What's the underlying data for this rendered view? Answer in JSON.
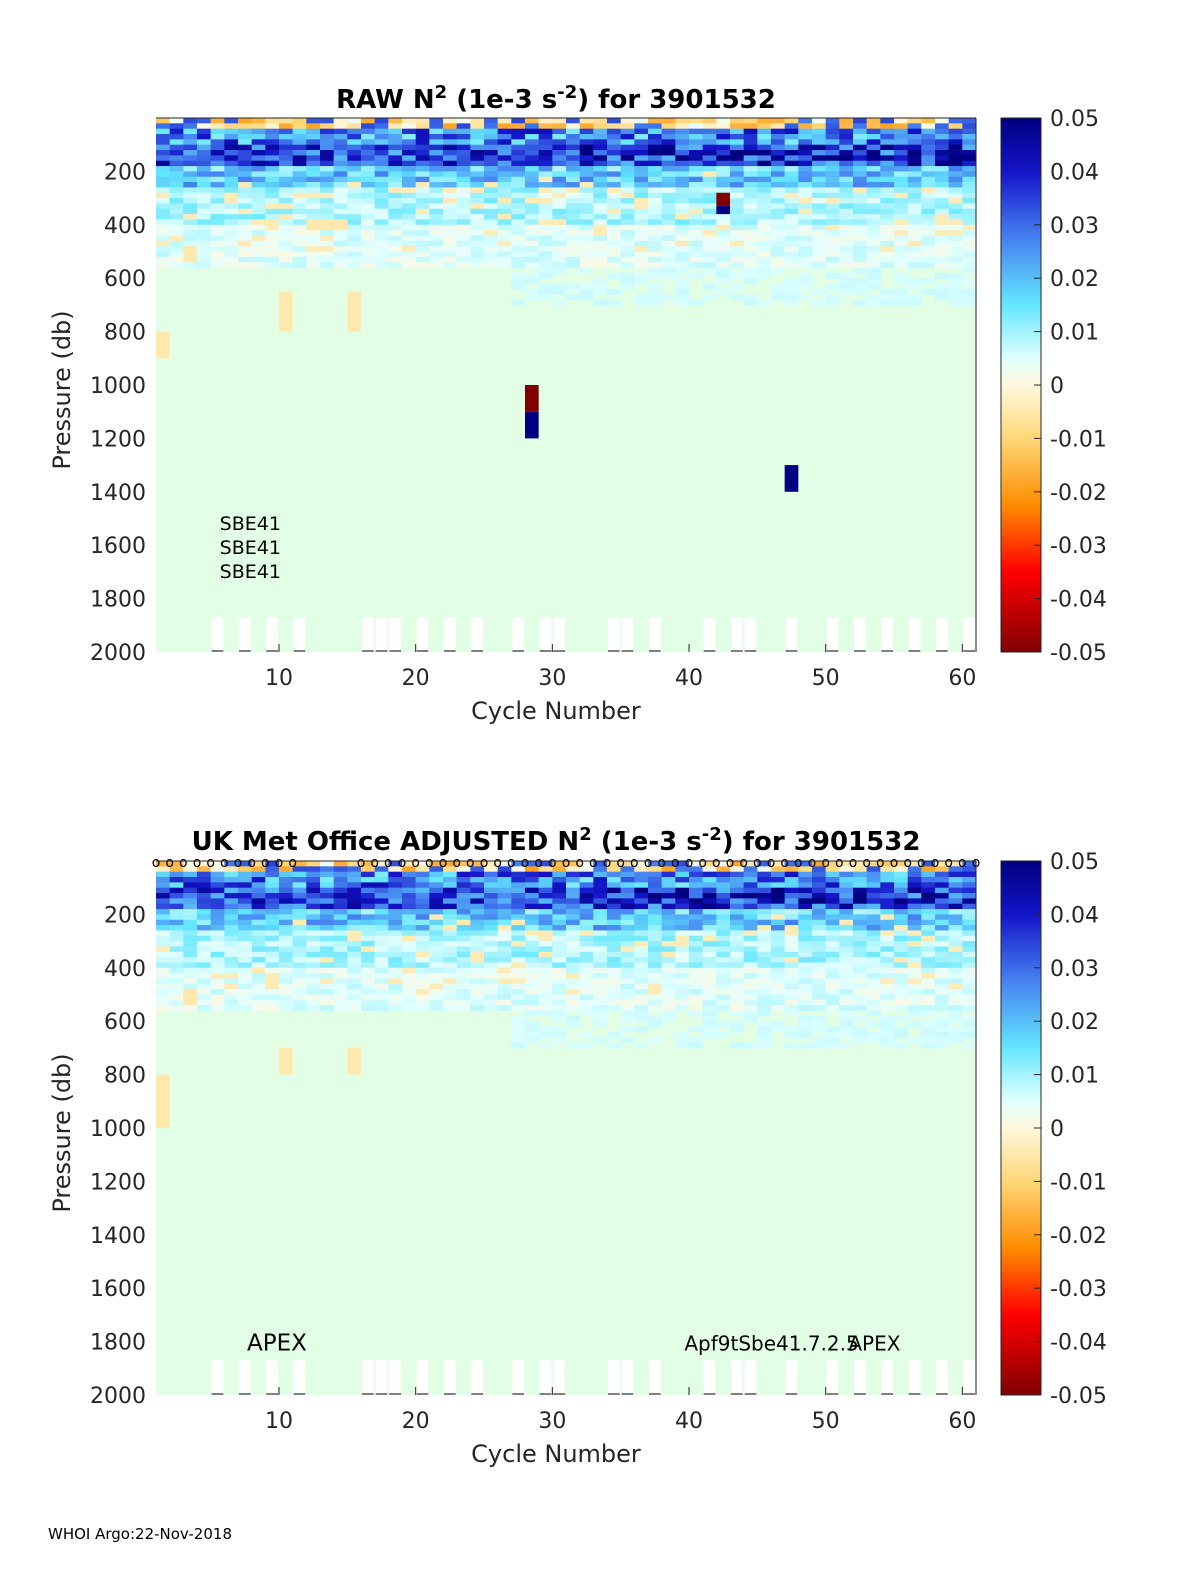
{
  "chart_data": [
    {
      "type": "heatmap",
      "title_parts": [
        "RAW N",
        "2",
        " (1e-3 s",
        "-2",
        ") for 3901532"
      ],
      "xlabel": "Cycle Number",
      "ylabel": "Pressure (db)",
      "xlim": [
        1,
        61
      ],
      "ylim": [
        2000,
        0
      ],
      "x_ticks": [
        "10",
        "20",
        "30",
        "40",
        "50",
        "60"
      ],
      "y_ticks": [
        "200",
        "400",
        "600",
        "800",
        "1000",
        "1200",
        "1400",
        "1600",
        "1800",
        "2000"
      ],
      "colorbar": {
        "range": [
          -0.05,
          0.05
        ],
        "ticks": [
          "0.05",
          "0.04",
          "0.03",
          "0.02",
          "0.01",
          "0",
          "-0.01",
          "-0.02",
          "-0.03",
          "-0.04",
          "-0.05"
        ]
      },
      "labels": [
        {
          "text": "SBE41",
          "x": 8,
          "p": 1520
        },
        {
          "text": "SBE41",
          "x": 8,
          "p": 1610
        },
        {
          "text": "SBE41",
          "x": 8,
          "p": 1700
        }
      ],
      "anomalies": [
        {
          "x0": 28,
          "x1": 29,
          "p0": 1000,
          "p1": 1100,
          "value": -0.05
        },
        {
          "x0": 28,
          "x1": 29,
          "p0": 1100,
          "p1": 1200,
          "value": 0.05
        },
        {
          "x0": 47,
          "x1": 48,
          "p0": 1300,
          "p1": 1400,
          "value": 0.05
        },
        {
          "x0": 42,
          "x1": 43,
          "p0": 280,
          "p1": 330,
          "value": -0.05
        },
        {
          "x0": 42,
          "x1": 43,
          "p0": 330,
          "p1": 360,
          "value": 0.05
        }
      ],
      "warm_patches": [
        {
          "x0": 1,
          "x1": 2,
          "p0": 800,
          "p1": 900
        },
        {
          "x0": 10,
          "x1": 11,
          "p0": 650,
          "p1": 800
        },
        {
          "x0": 15,
          "x1": 16,
          "p0": 650,
          "p1": 800
        },
        {
          "x0": 12,
          "x1": 15,
          "p0": 380,
          "p1": 420
        },
        {
          "x0": 3,
          "x1": 4,
          "p0": 480,
          "p1": 540
        }
      ],
      "missing_cycles": [
        6,
        8,
        10,
        12,
        17,
        18,
        19,
        21,
        23,
        25,
        28,
        30,
        31,
        35,
        36,
        38,
        42,
        44,
        45,
        48,
        51,
        53,
        55,
        57,
        59,
        61
      ]
    },
    {
      "type": "heatmap",
      "title_parts": [
        "UK Met Office  ADJUSTED N",
        "2",
        " (1e-3 s",
        "-2",
        ") for 3901532"
      ],
      "xlabel": "Cycle Number",
      "ylabel": "Pressure (db)",
      "xlim": [
        1,
        61
      ],
      "ylim": [
        2000,
        0
      ],
      "x_ticks": [
        "10",
        "20",
        "30",
        "40",
        "50",
        "60"
      ],
      "y_ticks": [
        "200",
        "400",
        "600",
        "800",
        "1000",
        "1200",
        "1400",
        "1600",
        "1800",
        "2000"
      ],
      "colorbar": {
        "range": [
          -0.05,
          0.05
        ],
        "ticks": [
          "0.05",
          "0.04",
          "0.03",
          "0.02",
          "0.01",
          "0",
          "-0.01",
          "-0.02",
          "-0.03",
          "-0.04",
          "-0.05"
        ]
      },
      "labels": [
        {
          "text": "APEX",
          "x": 10,
          "p": 1810,
          "big": true
        },
        {
          "text": "Apf9tSbe41.7.2.5",
          "x": 42,
          "p": 1810,
          "big": false
        },
        {
          "text": "APEX",
          "x": 54,
          "p": 1810,
          "big": false
        }
      ],
      "anomalies": [],
      "warm_patches": [
        {
          "x0": 1,
          "x1": 2,
          "p0": 800,
          "p1": 1000
        },
        {
          "x0": 10,
          "x1": 11,
          "p0": 700,
          "p1": 800
        },
        {
          "x0": 15,
          "x1": 16,
          "p0": 700,
          "p1": 800
        },
        {
          "x0": 3,
          "x1": 4,
          "p0": 480,
          "p1": 540
        }
      ],
      "missing_cycles": [
        6,
        8,
        10,
        12,
        17,
        18,
        19,
        21,
        23,
        25,
        28,
        30,
        31,
        35,
        36,
        38,
        42,
        44,
        45,
        48,
        51,
        53,
        55,
        57,
        59,
        61
      ],
      "qc_marker": "o",
      "qc_gap_cycles": [
        12,
        13,
        14,
        15
      ]
    }
  ],
  "footer": "WHOI Argo:22-Nov-2018"
}
